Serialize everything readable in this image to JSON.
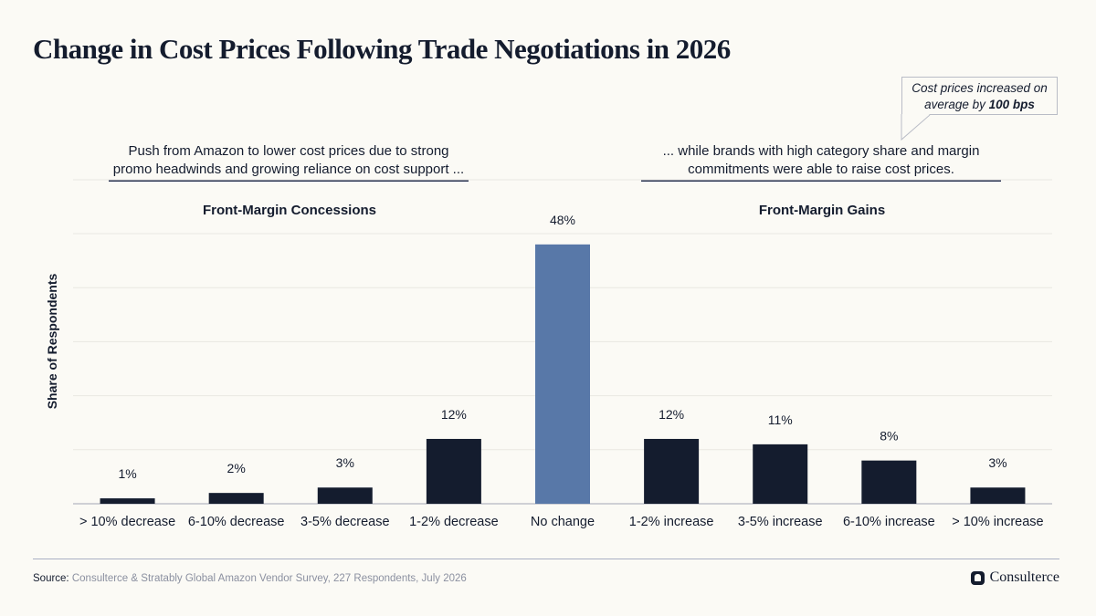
{
  "title": "Change in Cost Prices Following Trade Negotiations in 2026",
  "callout": {
    "text_before": "Cost prices increased on average by ",
    "text_bold": "100 bps"
  },
  "annotations": {
    "left": "Push from Amazon to lower cost prices due to strong promo headwinds and growing reliance on cost support ...",
    "right": "... while brands with high category share and margin commitments were able to raise cost prices."
  },
  "sections": {
    "left": "Front-Margin Concessions",
    "right": "Front-Margin Gains"
  },
  "colors": {
    "bar_default": "#141c2e",
    "bar_highlight": "#5878a8",
    "grid": "#e9e8e2",
    "baseline": "#b5b8c2"
  },
  "chart_data": {
    "type": "bar",
    "ylabel": "Share of Respondents",
    "categories": [
      "> 10% decrease",
      "6-10% decrease",
      "3-5% decrease",
      "1-2% decrease",
      "No change",
      "1-2% increase",
      "3-5% increase",
      "6-10% increase",
      "> 10% increase"
    ],
    "values": [
      1,
      2,
      3,
      12,
      48,
      12,
      11,
      8,
      3
    ],
    "value_labels": [
      "1%",
      "2%",
      "3%",
      "12%",
      "48%",
      "12%",
      "11%",
      "8%",
      "3%"
    ],
    "highlight_category": "No change",
    "ylim": [
      0,
      50
    ],
    "grid": true
  },
  "footer": {
    "source_label": "Source:",
    "source_text": "Consulterce & Stratably Global Amazon Vendor Survey, 227 Respondents, July 2026",
    "brand": "Consulterce"
  }
}
